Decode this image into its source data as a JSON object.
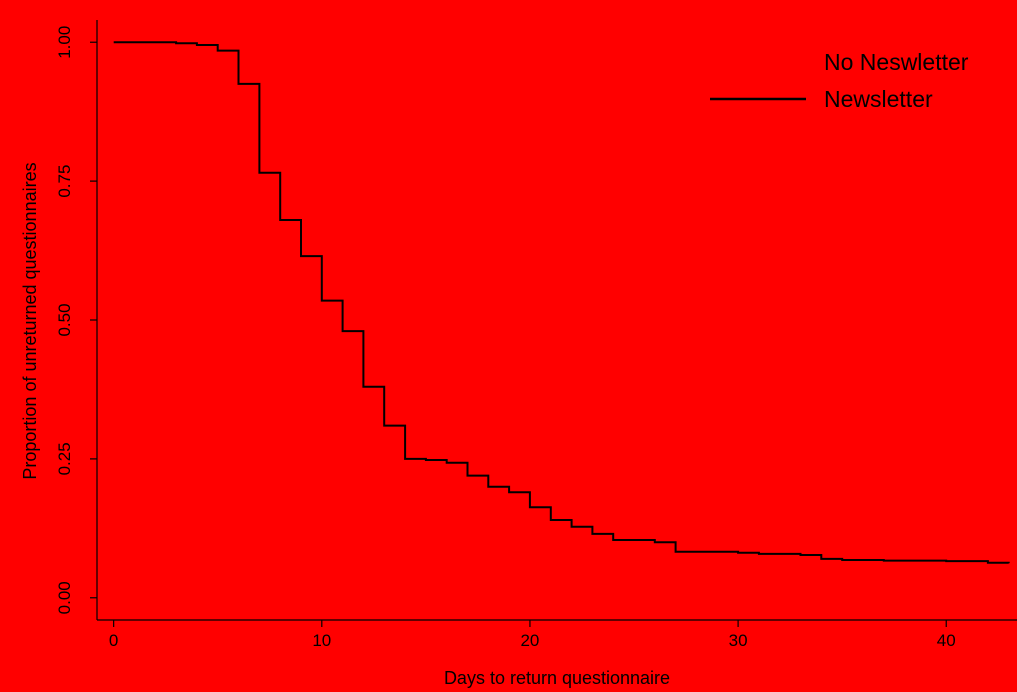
{
  "chart_data": {
    "type": "line",
    "step": true,
    "title": "",
    "xlabel": "Days to return questionnaire",
    "ylabel": "Proportion of unreturned questionnaires",
    "xlim": [
      -0.8,
      43.4
    ],
    "ylim": [
      -0.04,
      1.04
    ],
    "xticks": [
      0,
      10,
      20,
      30,
      40
    ],
    "yticks": [
      0.0,
      0.25,
      0.5,
      0.75,
      1.0
    ],
    "xtick_labels": [
      "0",
      "10",
      "20",
      "30",
      "40"
    ],
    "ytick_labels": [
      "0.00",
      "0.25",
      "0.50",
      "0.75",
      "1.00"
    ],
    "grid": false,
    "legend_position": "top-right",
    "background_color": "#ff0000",
    "series": [
      {
        "name": "No Neswletter",
        "color": "#ff0000",
        "x": [
          0,
          43
        ],
        "y": [
          1.0,
          1.0
        ]
      },
      {
        "name": "Newsletter",
        "color": "#000000",
        "x": [
          0,
          3,
          4,
          5,
          6,
          7,
          8,
          9,
          10,
          11,
          12,
          13,
          14,
          15,
          16,
          17,
          18,
          19,
          20,
          21,
          22,
          23,
          24,
          26,
          27,
          29,
          30,
          31,
          33,
          34,
          35,
          37,
          40,
          42,
          43
        ],
        "y": [
          1.0,
          0.998,
          0.995,
          0.985,
          0.925,
          0.765,
          0.68,
          0.615,
          0.535,
          0.48,
          0.38,
          0.31,
          0.25,
          0.248,
          0.243,
          0.22,
          0.2,
          0.19,
          0.163,
          0.14,
          0.128,
          0.115,
          0.104,
          0.1,
          0.083,
          0.083,
          0.081,
          0.079,
          0.077,
          0.07,
          0.068,
          0.067,
          0.066,
          0.063,
          0.062
        ]
      }
    ]
  }
}
